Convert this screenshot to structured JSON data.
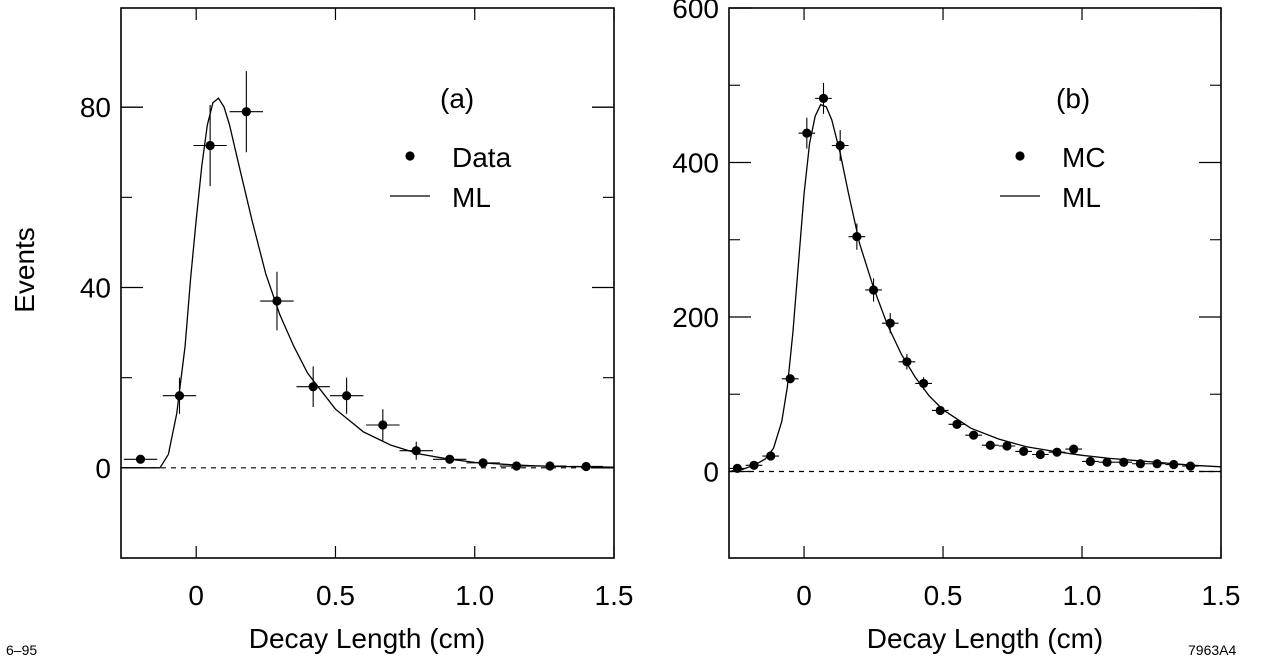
{
  "figure": {
    "note_left": "6–95",
    "note_right": "7963A4"
  },
  "chart_data": [
    {
      "type": "scatter",
      "panel_label": "(a)",
      "ylabel": "Events",
      "xlabel": "Decay Length   (cm)",
      "xlim": [
        -0.27,
        1.5
      ],
      "ylim": [
        -20,
        102
      ],
      "x_ticks": [
        0,
        0.5,
        1.0,
        1.5
      ],
      "x_tick_labels": [
        "0",
        "0.5",
        "1.0",
        "1.5"
      ],
      "y_ticks": [
        0,
        40,
        80
      ],
      "y_tick_labels": [
        "0",
        "40",
        "80"
      ],
      "y_minor_ticks": [
        20,
        60
      ],
      "grid": false,
      "legend": {
        "position": "top-right",
        "entries": [
          {
            "label": "Data",
            "marker": "dot"
          },
          {
            "label": "ML",
            "marker": "line"
          }
        ]
      },
      "baseline": 0,
      "series": [
        {
          "name": "Data",
          "points": [
            {
              "x": -0.2,
              "y": 1.9,
              "xerr": 0.06,
              "yerr": 0
            },
            {
              "x": -0.06,
              "y": 16,
              "xerr": 0.06,
              "yerr": 4
            },
            {
              "x": 0.05,
              "y": 71.5,
              "xerr": 0.06,
              "yerr": 9
            },
            {
              "x": 0.18,
              "y": 79,
              "xerr": 0.06,
              "yerr": 9
            },
            {
              "x": 0.29,
              "y": 37,
              "xerr": 0.06,
              "yerr": 6.5
            },
            {
              "x": 0.42,
              "y": 18,
              "xerr": 0.06,
              "yerr": 4.5
            },
            {
              "x": 0.54,
              "y": 16,
              "xerr": 0.06,
              "yerr": 4
            },
            {
              "x": 0.67,
              "y": 9.5,
              "xerr": 0.06,
              "yerr": 3.5
            },
            {
              "x": 0.79,
              "y": 3.8,
              "xerr": 0.06,
              "yerr": 2
            },
            {
              "x": 0.91,
              "y": 1.9,
              "xerr": 0.06,
              "yerr": 0.5
            },
            {
              "x": 1.03,
              "y": 1.1,
              "xerr": 0.06,
              "yerr": 0
            },
            {
              "x": 1.15,
              "y": 0.4,
              "xerr": 0.06,
              "yerr": 0
            },
            {
              "x": 1.27,
              "y": 0.4,
              "xerr": 0.06,
              "yerr": 0
            },
            {
              "x": 1.4,
              "y": 0.3,
              "xerr": 0.06,
              "yerr": 0
            }
          ]
        },
        {
          "name": "ML",
          "curve": [
            [
              -0.27,
              0
            ],
            [
              -0.13,
              0
            ],
            [
              -0.1,
              3
            ],
            [
              -0.07,
              12
            ],
            [
              -0.04,
              27
            ],
            [
              -0.02,
              42
            ],
            [
              0,
              55
            ],
            [
              0.02,
              67
            ],
            [
              0.04,
              76
            ],
            [
              0.06,
              81
            ],
            [
              0.08,
              82
            ],
            [
              0.1,
              80
            ],
            [
              0.12,
              76
            ],
            [
              0.15,
              68
            ],
            [
              0.2,
              55
            ],
            [
              0.25,
              43
            ],
            [
              0.3,
              34
            ],
            [
              0.35,
              27
            ],
            [
              0.4,
              21
            ],
            [
              0.5,
              13
            ],
            [
              0.6,
              8
            ],
            [
              0.7,
              5
            ],
            [
              0.8,
              3.1
            ],
            [
              0.9,
              2
            ],
            [
              1.0,
              1.2
            ],
            [
              1.1,
              0.8
            ],
            [
              1.2,
              0.5
            ],
            [
              1.3,
              0.3
            ],
            [
              1.4,
              0.2
            ],
            [
              1.5,
              0.15
            ]
          ]
        }
      ]
    },
    {
      "type": "scatter",
      "panel_label": "(b)",
      "ylabel": "",
      "xlabel": "Decay Length   (cm)",
      "xlim": [
        -0.27,
        1.5
      ],
      "ylim": [
        -112,
        600
      ],
      "x_ticks": [
        0,
        0.5,
        1.0,
        1.5
      ],
      "x_tick_labels": [
        "0",
        "0.5",
        "1.0",
        "1.5"
      ],
      "y_ticks": [
        0,
        200,
        400,
        600
      ],
      "y_tick_labels": [
        "0",
        "200",
        "400",
        "600"
      ],
      "y_minor_ticks": [
        100,
        300,
        500
      ],
      "grid": false,
      "legend": {
        "position": "top-right",
        "entries": [
          {
            "label": "MC",
            "marker": "dot"
          },
          {
            "label": "ML",
            "marker": "line"
          }
        ]
      },
      "baseline": 0,
      "series": [
        {
          "name": "MC",
          "points": [
            {
              "x": -0.24,
              "y": 4,
              "xerr": 0.03,
              "yerr": 0
            },
            {
              "x": -0.18,
              "y": 8,
              "xerr": 0.03,
              "yerr": 0
            },
            {
              "x": -0.12,
              "y": 20,
              "xerr": 0.03,
              "yerr": 0
            },
            {
              "x": -0.05,
              "y": 120,
              "xerr": 0.03,
              "yerr": 0
            },
            {
              "x": 0.01,
              "y": 438,
              "xerr": 0.03,
              "yerr": 20
            },
            {
              "x": 0.07,
              "y": 483,
              "xerr": 0.03,
              "yerr": 20
            },
            {
              "x": 0.13,
              "y": 422,
              "xerr": 0.03,
              "yerr": 20
            },
            {
              "x": 0.19,
              "y": 304,
              "xerr": 0.03,
              "yerr": 17
            },
            {
              "x": 0.25,
              "y": 235,
              "xerr": 0.03,
              "yerr": 15
            },
            {
              "x": 0.31,
              "y": 192,
              "xerr": 0.03,
              "yerr": 13
            },
            {
              "x": 0.37,
              "y": 142,
              "xerr": 0.03,
              "yerr": 10
            },
            {
              "x": 0.43,
              "y": 114,
              "xerr": 0.03,
              "yerr": 8
            },
            {
              "x": 0.49,
              "y": 79,
              "xerr": 0.03,
              "yerr": 0
            },
            {
              "x": 0.55,
              "y": 61,
              "xerr": 0.03,
              "yerr": 0
            },
            {
              "x": 0.61,
              "y": 47,
              "xerr": 0.03,
              "yerr": 0
            },
            {
              "x": 0.67,
              "y": 34,
              "xerr": 0.03,
              "yerr": 0
            },
            {
              "x": 0.73,
              "y": 33,
              "xerr": 0.03,
              "yerr": 0
            },
            {
              "x": 0.79,
              "y": 26,
              "xerr": 0.03,
              "yerr": 0
            },
            {
              "x": 0.85,
              "y": 22,
              "xerr": 0.03,
              "yerr": 0
            },
            {
              "x": 0.91,
              "y": 25,
              "xerr": 0.03,
              "yerr": 0
            },
            {
              "x": 0.97,
              "y": 29,
              "xerr": 0.03,
              "yerr": 0
            },
            {
              "x": 1.03,
              "y": 13,
              "xerr": 0.03,
              "yerr": 0
            },
            {
              "x": 1.09,
              "y": 12,
              "xerr": 0.03,
              "yerr": 0
            },
            {
              "x": 1.15,
              "y": 12,
              "xerr": 0.03,
              "yerr": 0
            },
            {
              "x": 1.21,
              "y": 10,
              "xerr": 0.03,
              "yerr": 0
            },
            {
              "x": 1.27,
              "y": 10,
              "xerr": 0.03,
              "yerr": 0
            },
            {
              "x": 1.33,
              "y": 9,
              "xerr": 0.03,
              "yerr": 0
            },
            {
              "x": 1.39,
              "y": 7,
              "xerr": 0.03,
              "yerr": 0
            }
          ]
        },
        {
          "name": "ML",
          "curve": [
            [
              -0.27,
              0
            ],
            [
              -0.22,
              3
            ],
            [
              -0.18,
              8
            ],
            [
              -0.14,
              16
            ],
            [
              -0.11,
              30
            ],
            [
              -0.08,
              65
            ],
            [
              -0.06,
              110
            ],
            [
              -0.04,
              180
            ],
            [
              -0.02,
              270
            ],
            [
              0,
              360
            ],
            [
              0.02,
              425
            ],
            [
              0.04,
              460
            ],
            [
              0.06,
              475
            ],
            [
              0.08,
              472
            ],
            [
              0.1,
              455
            ],
            [
              0.13,
              412
            ],
            [
              0.16,
              360
            ],
            [
              0.2,
              295
            ],
            [
              0.25,
              238
            ],
            [
              0.3,
              190
            ],
            [
              0.35,
              152
            ],
            [
              0.4,
              122
            ],
            [
              0.45,
              98
            ],
            [
              0.5,
              80
            ],
            [
              0.6,
              56
            ],
            [
              0.7,
              42
            ],
            [
              0.8,
              32
            ],
            [
              0.9,
              26
            ],
            [
              1.0,
              21
            ],
            [
              1.1,
              17
            ],
            [
              1.2,
              14
            ],
            [
              1.3,
              11
            ],
            [
              1.4,
              8
            ],
            [
              1.5,
              6
            ]
          ]
        }
      ]
    }
  ]
}
